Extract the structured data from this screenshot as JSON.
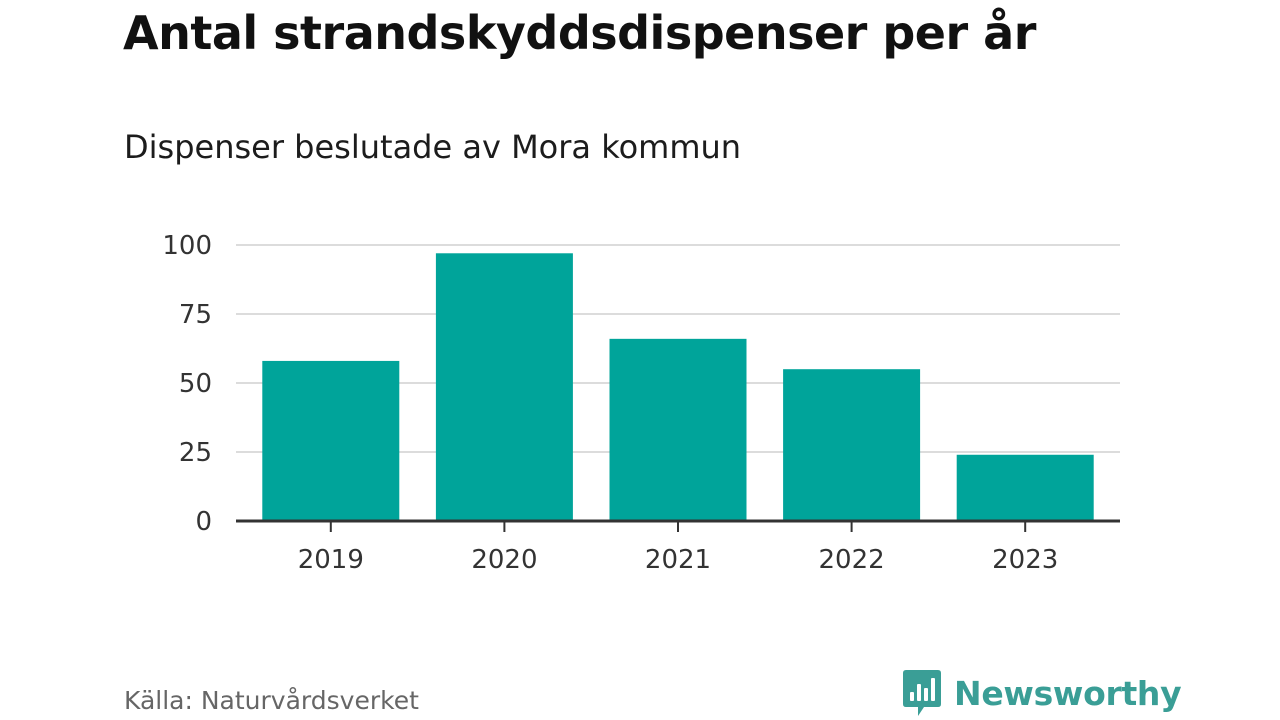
{
  "colors": {
    "bar": "#00a49a",
    "grid": "#dcdcdc",
    "axis": "#333333",
    "brand": "#3a9e96"
  },
  "source": "Källa: Naturvårdsverket",
  "brand": {
    "name": "Newsworthy",
    "logo_icon": "bar-chart-speech-bubble-icon"
  },
  "chart_data": {
    "type": "bar",
    "title": "Antal strandskyddsdispenser per år",
    "subtitle": "Dispenser beslutade av Mora kommun",
    "categories": [
      "2019",
      "2020",
      "2021",
      "2022",
      "2023"
    ],
    "values": [
      58,
      97,
      66,
      55,
      24
    ],
    "xlabel": "",
    "ylabel": "",
    "ylim": [
      0,
      100
    ],
    "yticks": [
      0,
      25,
      50,
      75,
      100
    ],
    "grid": true,
    "legend": "none"
  }
}
